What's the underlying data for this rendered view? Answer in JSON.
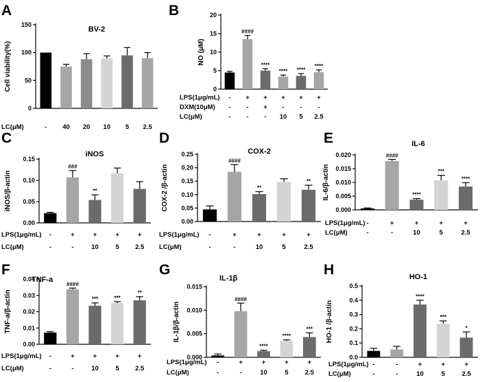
{
  "figure_panels": [
    "A",
    "B",
    "C",
    "D",
    "E",
    "F",
    "G",
    "H"
  ],
  "chart_data": [
    {
      "id": "A",
      "type": "bar",
      "panel_label": "A",
      "title": "BV-2",
      "ylabel": "Cell viability(%)",
      "xlabel": "",
      "ylim": [
        0,
        150
      ],
      "yticks": [
        0,
        50,
        100,
        150
      ],
      "ytick_labels": [
        "0",
        "50",
        "100",
        "150"
      ],
      "categories": [
        "-",
        "40",
        "20",
        "10",
        "5",
        "2.5"
      ],
      "values": [
        100,
        75,
        88,
        90,
        95,
        90
      ],
      "errors": [
        0,
        4,
        10,
        4,
        14,
        10
      ],
      "colors": [
        "#000000",
        "#a6a6a6",
        "#8c8c8c",
        "#d4d4d4",
        "#6b6b6b",
        "#a6a6a6"
      ],
      "significance": [
        "",
        "",
        "",
        "",
        "",
        ""
      ],
      "treatment_rows": [
        {
          "label": "LC(μM)",
          "cells": [
            "-",
            "40",
            "20",
            "10",
            "5",
            "2.5"
          ]
        }
      ]
    },
    {
      "id": "B",
      "type": "bar",
      "panel_label": "B",
      "title": "",
      "ylabel": "NO (μM)",
      "xlabel": "",
      "ylim": [
        0,
        20
      ],
      "yticks": [
        0,
        5,
        10,
        15,
        20
      ],
      "ytick_labels": [
        "0",
        "5",
        "10",
        "15",
        "20"
      ],
      "categories": [
        "Control",
        "LPS",
        "LPS+DXM",
        "LPS+LC10",
        "LPS+LC5",
        "LPS+LC2.5"
      ],
      "values": [
        4.5,
        13.5,
        5.0,
        3.4,
        3.6,
        4.6
      ],
      "errors": [
        0.3,
        1.0,
        0.5,
        0.4,
        0.6,
        0.6
      ],
      "colors": [
        "#000000",
        "#a6a6a6",
        "#6b6b6b",
        "#a6a6a6",
        "#6b6b6b",
        "#a6a6a6"
      ],
      "significance": [
        "",
        "####",
        "****",
        "****",
        "****",
        "****"
      ],
      "treatment_rows": [
        {
          "label": "LPS(1μg/mL)",
          "cells": [
            "-",
            "+",
            "+",
            "+",
            "+",
            "+"
          ]
        },
        {
          "label": "DXM(10μM)",
          "cells": [
            "-",
            "-",
            "+",
            "-",
            "-",
            "-"
          ]
        },
        {
          "label": "LC(μM)",
          "cells": [
            "-",
            "-",
            "-",
            "10",
            "5",
            "2.5"
          ]
        }
      ]
    },
    {
      "id": "C",
      "type": "bar",
      "panel_label": "C",
      "title": "iNOS",
      "ylabel": "iNOS/β-actin",
      "xlabel": "",
      "ylim": [
        0,
        0.15
      ],
      "yticks": [
        0,
        0.05,
        0.1,
        0.15
      ],
      "ytick_labels": [
        "0.00",
        "0.05",
        "0.10",
        "0.15"
      ],
      "categories": [
        "Control",
        "LPS",
        "LPS+LC10",
        "LPS+LC5",
        "LPS+LC2.5"
      ],
      "values": [
        0.023,
        0.107,
        0.054,
        0.117,
        0.08
      ],
      "errors": [
        0.002,
        0.016,
        0.012,
        0.012,
        0.017
      ],
      "colors": [
        "#000000",
        "#a6a6a6",
        "#6b6b6b",
        "#d4d4d4",
        "#6b6b6b"
      ],
      "significance": [
        "",
        "###",
        "**",
        "",
        ""
      ],
      "treatment_rows": [
        {
          "label": "LPS(1μg/mL)",
          "cells": [
            "-",
            "+",
            "+",
            "+",
            "+"
          ]
        },
        {
          "label": "LC(μM)",
          "cells": [
            "-",
            "-",
            "10",
            "5",
            "2.5"
          ]
        }
      ]
    },
    {
      "id": "D",
      "type": "bar",
      "panel_label": "D",
      "title": "COX-2",
      "ylabel": "COX-2 /β-actin",
      "xlabel": "",
      "ylim": [
        0,
        0.25
      ],
      "yticks": [
        0,
        0.05,
        0.1,
        0.15,
        0.2,
        0.25
      ],
      "ytick_labels": [
        "0.00",
        "0.05",
        "0.10",
        "0.15",
        "0.20",
        "0.25"
      ],
      "categories": [
        "Control",
        "LPS",
        "LPS+LC10",
        "LPS+LC5",
        "LPS+LC2.5"
      ],
      "values": [
        0.045,
        0.185,
        0.102,
        0.147,
        0.118
      ],
      "errors": [
        0.013,
        0.027,
        0.009,
        0.012,
        0.017
      ],
      "colors": [
        "#000000",
        "#a6a6a6",
        "#6b6b6b",
        "#d4d4d4",
        "#6b6b6b"
      ],
      "significance": [
        "",
        "####",
        "**",
        "",
        "**"
      ],
      "treatment_rows": [
        {
          "label": "LPS(1μg/mL)",
          "cells": [
            "-",
            "+",
            "+",
            "+",
            "+"
          ]
        },
        {
          "label": "LC(μM)",
          "cells": [
            "-",
            "-",
            "10",
            "5",
            "2.5"
          ]
        }
      ]
    },
    {
      "id": "E",
      "type": "bar",
      "panel_label": "E",
      "title": "IL-6",
      "ylabel": "IL-6/β-actin",
      "xlabel": "",
      "ylim": [
        0,
        0.02
      ],
      "yticks": [
        0,
        0.005,
        0.01,
        0.015,
        0.02
      ],
      "ytick_labels": [
        "0.000",
        "0.005",
        "0.010",
        "0.015",
        "0.020"
      ],
      "categories": [
        "Control",
        "LPS",
        "LPS+LC10",
        "LPS+LC5",
        "LPS+LC2.5"
      ],
      "values": [
        0.0005,
        0.0178,
        0.0037,
        0.0108,
        0.0085
      ],
      "errors": [
        0.0002,
        0.0006,
        0.0004,
        0.0018,
        0.0014
      ],
      "colors": [
        "#000000",
        "#a6a6a6",
        "#6b6b6b",
        "#d4d4d4",
        "#6b6b6b"
      ],
      "significance": [
        "",
        "####",
        "****",
        "***",
        "****"
      ],
      "treatment_rows": [
        {
          "label": "LPS(1μg/mL)",
          "cells": [
            "-",
            "+",
            "+",
            "+",
            "+"
          ]
        },
        {
          "label": "LC(μM)",
          "cells": [
            "-",
            "-",
            "10",
            "5",
            "2.5"
          ]
        }
      ]
    },
    {
      "id": "F",
      "type": "bar",
      "panel_label": "F",
      "title": "TNF-a",
      "ylabel": "TNF-a/β-actin",
      "xlabel": "",
      "ylim": [
        0,
        0.04
      ],
      "yticks": [
        0,
        0.01,
        0.02,
        0.03,
        0.04
      ],
      "ytick_labels": [
        "0.00",
        "0.01",
        "0.02",
        "0.03",
        "0.04"
      ],
      "categories": [
        "Control",
        "LPS",
        "LPS+LC10",
        "LPS+LC5",
        "LPS+LC2.5"
      ],
      "values": [
        0.0072,
        0.0338,
        0.0237,
        0.0253,
        0.027
      ],
      "errors": [
        0.0006,
        0.0007,
        0.0017,
        0.0009,
        0.0022
      ],
      "colors": [
        "#000000",
        "#a6a6a6",
        "#6b6b6b",
        "#d4d4d4",
        "#6b6b6b"
      ],
      "significance": [
        "",
        "####",
        "***",
        "***",
        "**"
      ],
      "treatment_rows": [
        {
          "label": "LPS(1μg/mL)",
          "cells": [
            "-",
            "+",
            "+",
            "+",
            "+"
          ]
        },
        {
          "label": "LC(μM)",
          "cells": [
            "-",
            "-",
            "10",
            "5",
            "2.5"
          ]
        }
      ]
    },
    {
      "id": "G",
      "type": "bar",
      "panel_label": "G",
      "title": "IL-1β",
      "ylabel": "IL-1β/β-actin",
      "xlabel": "",
      "ylim": [
        0,
        0.015
      ],
      "yticks": [
        0,
        0.005,
        0.01,
        0.015
      ],
      "ytick_labels": [
        "0.000",
        "0.005",
        "0.010",
        "0.015"
      ],
      "categories": [
        "Control",
        "LPS",
        "LPS+LC10",
        "LPS+LC5",
        "LPS+LC2.5"
      ],
      "values": [
        0.0004,
        0.0098,
        0.0013,
        0.0035,
        0.0043
      ],
      "errors": [
        0.0003,
        0.0017,
        0.0002,
        0.0002,
        0.0009
      ],
      "colors": [
        "#000000",
        "#a6a6a6",
        "#6b6b6b",
        "#d4d4d4",
        "#6b6b6b"
      ],
      "significance": [
        "",
        "####",
        "****",
        "****",
        "***"
      ],
      "treatment_rows": [
        {
          "label": "LPS(1μg/mL)",
          "cells": [
            "-",
            "+",
            "+",
            "+",
            "+"
          ]
        },
        {
          "label": "LC(μM)",
          "cells": [
            "-",
            "-",
            "10",
            "5",
            "2.5"
          ]
        }
      ]
    },
    {
      "id": "H",
      "type": "bar",
      "panel_label": "H",
      "title": "HO-1",
      "ylabel": "HO-1 /β-actin",
      "xlabel": "",
      "ylim": [
        0,
        0.5
      ],
      "yticks": [
        0,
        0.1,
        0.2,
        0.3,
        0.4,
        0.5
      ],
      "ytick_labels": [
        "0.0",
        "0.1",
        "0.2",
        "0.3",
        "0.4",
        "0.5"
      ],
      "categories": [
        "Control",
        "LPS",
        "LPS+LC10",
        "LPS+LC5",
        "LPS+LC2.5"
      ],
      "values": [
        0.045,
        0.055,
        0.37,
        0.235,
        0.138
      ],
      "errors": [
        0.018,
        0.022,
        0.03,
        0.02,
        0.04
      ],
      "colors": [
        "#000000",
        "#a6a6a6",
        "#6b6b6b",
        "#d4d4d4",
        "#6b6b6b"
      ],
      "significance": [
        "",
        "",
        "****",
        "***",
        "*"
      ],
      "treatment_rows": [
        {
          "label": "LPS(1μg/mL)",
          "cells": [
            "-",
            "-",
            "+",
            "+",
            "+"
          ]
        },
        {
          "label": "LC(μM)",
          "cells": [
            "-",
            "-",
            "10",
            "5",
            "2.5"
          ]
        }
      ]
    }
  ]
}
